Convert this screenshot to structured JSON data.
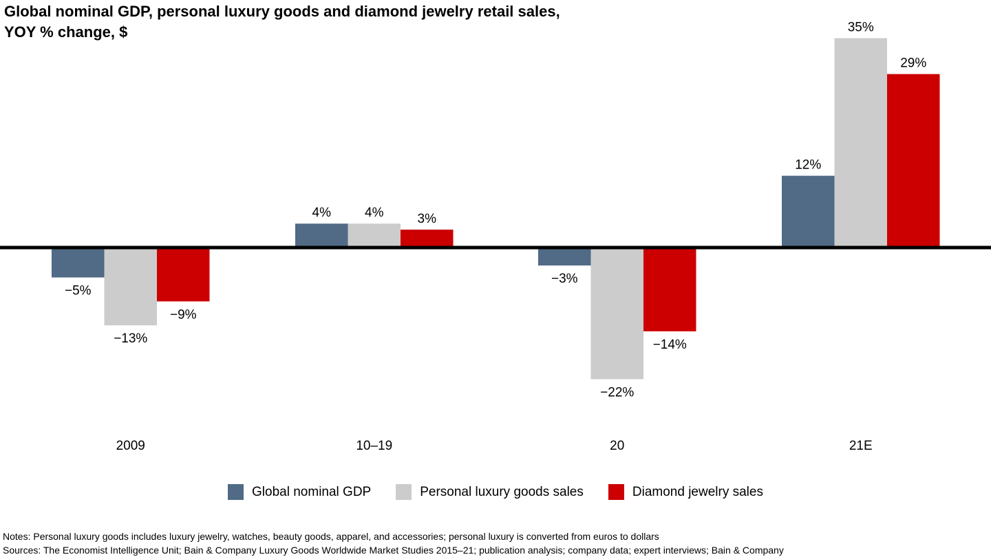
{
  "title_line1": "Global nominal GDP, personal luxury goods and diamond jewelry retail sales,",
  "title_line2": "YOY % change, $",
  "chart_data": {
    "type": "bar",
    "categories": [
      "2009",
      "10–19",
      "20",
      "21E"
    ],
    "series": [
      {
        "name": "Global nominal GDP",
        "color": "#516a85",
        "values": [
          -5,
          4,
          -3,
          12
        ],
        "labels": [
          "−5%",
          "4%",
          "−3%",
          "12%"
        ]
      },
      {
        "name": "Personal luxury goods sales",
        "color": "#cccccc",
        "values": [
          -13,
          4,
          -22,
          35
        ],
        "labels": [
          "−13%",
          "4%",
          "−22%",
          "35%"
        ]
      },
      {
        "name": "Diamond jewelry sales",
        "color": "#cc0000",
        "values": [
          -9,
          3,
          -14,
          29
        ],
        "labels": [
          "−9%",
          "3%",
          "−14%",
          "29%"
        ]
      }
    ],
    "ylim": [
      -22,
      35
    ],
    "grid": false,
    "legend_position": "bottom"
  },
  "notes": {
    "line1": "Notes: Personal luxury goods includes luxury jewelry, watches, beauty goods, apparel, and accessories; personal luxury is converted from euros to dollars",
    "line2": "Sources: The Economist Intelligence Unit; Bain & Company Luxury Goods Worldwide Market Studies 2015–21; publication analysis; company data; expert interviews; Bain & Company"
  }
}
